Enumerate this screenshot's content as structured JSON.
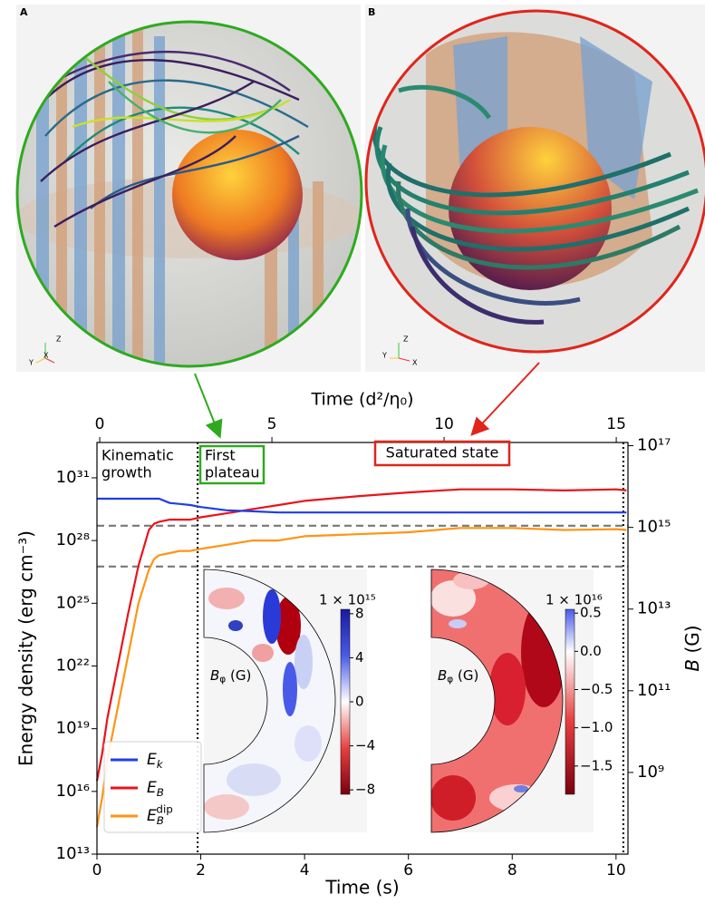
{
  "panels": [
    {
      "label": "A",
      "axes": [
        "Z",
        "Y",
        "X"
      ]
    },
    {
      "label": "B",
      "axes": [
        "Z",
        "Y",
        "X"
      ]
    }
  ],
  "chart_data": {
    "type": "line",
    "x": [
      0,
      0.1,
      0.2,
      0.4,
      0.6,
      0.8,
      1.0,
      1.1,
      1.2,
      1.4,
      1.6,
      1.8,
      2.0,
      2.5,
      3,
      3.5,
      4,
      5,
      6,
      7,
      8,
      9,
      10,
      10.2
    ],
    "xlabel": "Time (s)",
    "xlim": [
      0,
      10.23
    ],
    "xticks": [
      0,
      2,
      4,
      6,
      8,
      10
    ],
    "x2label": "Time (d²/η₀)",
    "x2lim": [
      -0.08,
      15.34
    ],
    "x2ticks": [
      0,
      5,
      10,
      15
    ],
    "ylabel": "Energy density (erg cm⁻³)",
    "ylog": true,
    "ylim": [
      10000000000000.0,
      4.9e+32
    ],
    "yticks": [
      {
        "value": 10000000000000.0,
        "label": "10¹³"
      },
      {
        "value": 1e+16,
        "label": "10¹⁶"
      },
      {
        "value": 1e+19,
        "label": "10¹⁹"
      },
      {
        "value": 1e+22,
        "label": "10²²"
      },
      {
        "value": 1e+25,
        "label": "10²⁵"
      },
      {
        "value": 1e+28,
        "label": "10²⁸"
      },
      {
        "value": 1e+31,
        "label": "10³¹"
      }
    ],
    "y2label": "B (G)",
    "y2log": true,
    "y2lim": [
      10000000.0,
      1.2e+17
    ],
    "y2ticks": [
      {
        "value": 1000000000.0,
        "label": "10⁹"
      },
      {
        "value": 100000000000.0,
        "label": "10¹¹"
      },
      {
        "value": 10000000000000.0,
        "label": "10¹³"
      },
      {
        "value": 1000000000000000.0,
        "label": "10¹⁵"
      },
      {
        "value": 1e+17,
        "label": "10¹⁷"
      }
    ],
    "series": [
      {
        "name": "E_k",
        "color": "#1f3de8",
        "values": [
          1e+30,
          1e+30,
          1e+30,
          1e+30,
          1e+30,
          1e+30,
          1e+30,
          1e+30,
          1e+30,
          6.3e+29,
          5.6e+29,
          5e+29,
          4e+29,
          2.8e+29,
          2.5e+29,
          2.2e+29,
          2.2e+29,
          2.2e+29,
          2.2e+29,
          2.2e+29,
          2.2e+29,
          2.2e+29,
          2.2e+29,
          2.2e+29
        ]
      },
      {
        "name": "E_B",
        "color": "#e8141a",
        "values": [
          3.2e+16,
          6.3e+17,
          3.2e+19,
          1e+22,
          3.2e+24,
          6.3e+26,
          3.2e+28,
          6.3e+28,
          7.9e+28,
          1e+29,
          1e+29,
          1e+29,
          1.3e+29,
          2e+29,
          3.2e+29,
          5e+29,
          7.9e+29,
          1.3e+30,
          2e+30,
          2.8e+30,
          2.8e+30,
          2.5e+30,
          2.8e+30,
          2.5e+30
        ]
      },
      {
        "name": "E_B^dip",
        "color": "#ff9412",
        "values": [
          200000000000000.0,
          5000000000000000.0,
          3.2e+17,
          1e+20,
          3.2e+22,
          1e+25,
          4e+26,
          1.3e+27,
          2e+27,
          2.5e+27,
          3.2e+27,
          3.2e+27,
          4e+27,
          6.3e+27,
          1e+28,
          1e+28,
          1.6e+28,
          2e+28,
          2.5e+28,
          4e+28,
          4e+28,
          3.2e+28,
          3.5e+28,
          3.2e+28
        ]
      }
    ],
    "legend": "lower left",
    "hlines": [
      {
        "value": 1100000000000000.0,
        "axis": "y2"
      },
      {
        "value": 110000000000000.0,
        "axis": "y2"
      }
    ],
    "vlines": [
      1.94,
      10.14
    ],
    "annotations": [
      {
        "lines": [
          "Kinematic",
          "growth"
        ]
      },
      {
        "lines": [
          "First",
          "plateau"
        ],
        "box": "#2eaa1e"
      },
      {
        "lines": [
          "Saturated state"
        ],
        "box": "#e0251b"
      }
    ],
    "insets": [
      {
        "label": "B_φ (G)",
        "scale_label": "1 × 10¹⁵",
        "clim": [
          -8.4,
          8.4
        ],
        "cticks": [
          8,
          4,
          0,
          {
            "value": -4,
            "label": "−4"
          },
          {
            "value": -8,
            "label": "−8"
          }
        ]
      },
      {
        "label": "B_φ (G)",
        "scale_label": "1 × 10¹⁶",
        "clim": [
          -1.87,
          0.55
        ],
        "cticks": [
          0.5,
          {
            "value": 0,
            "label": "0.0"
          },
          {
            "value": -0.5,
            "label": "−0.5"
          },
          {
            "value": -1,
            "label": "−1.0"
          },
          {
            "value": -1.5,
            "label": "−1.5"
          }
        ]
      }
    ]
  }
}
